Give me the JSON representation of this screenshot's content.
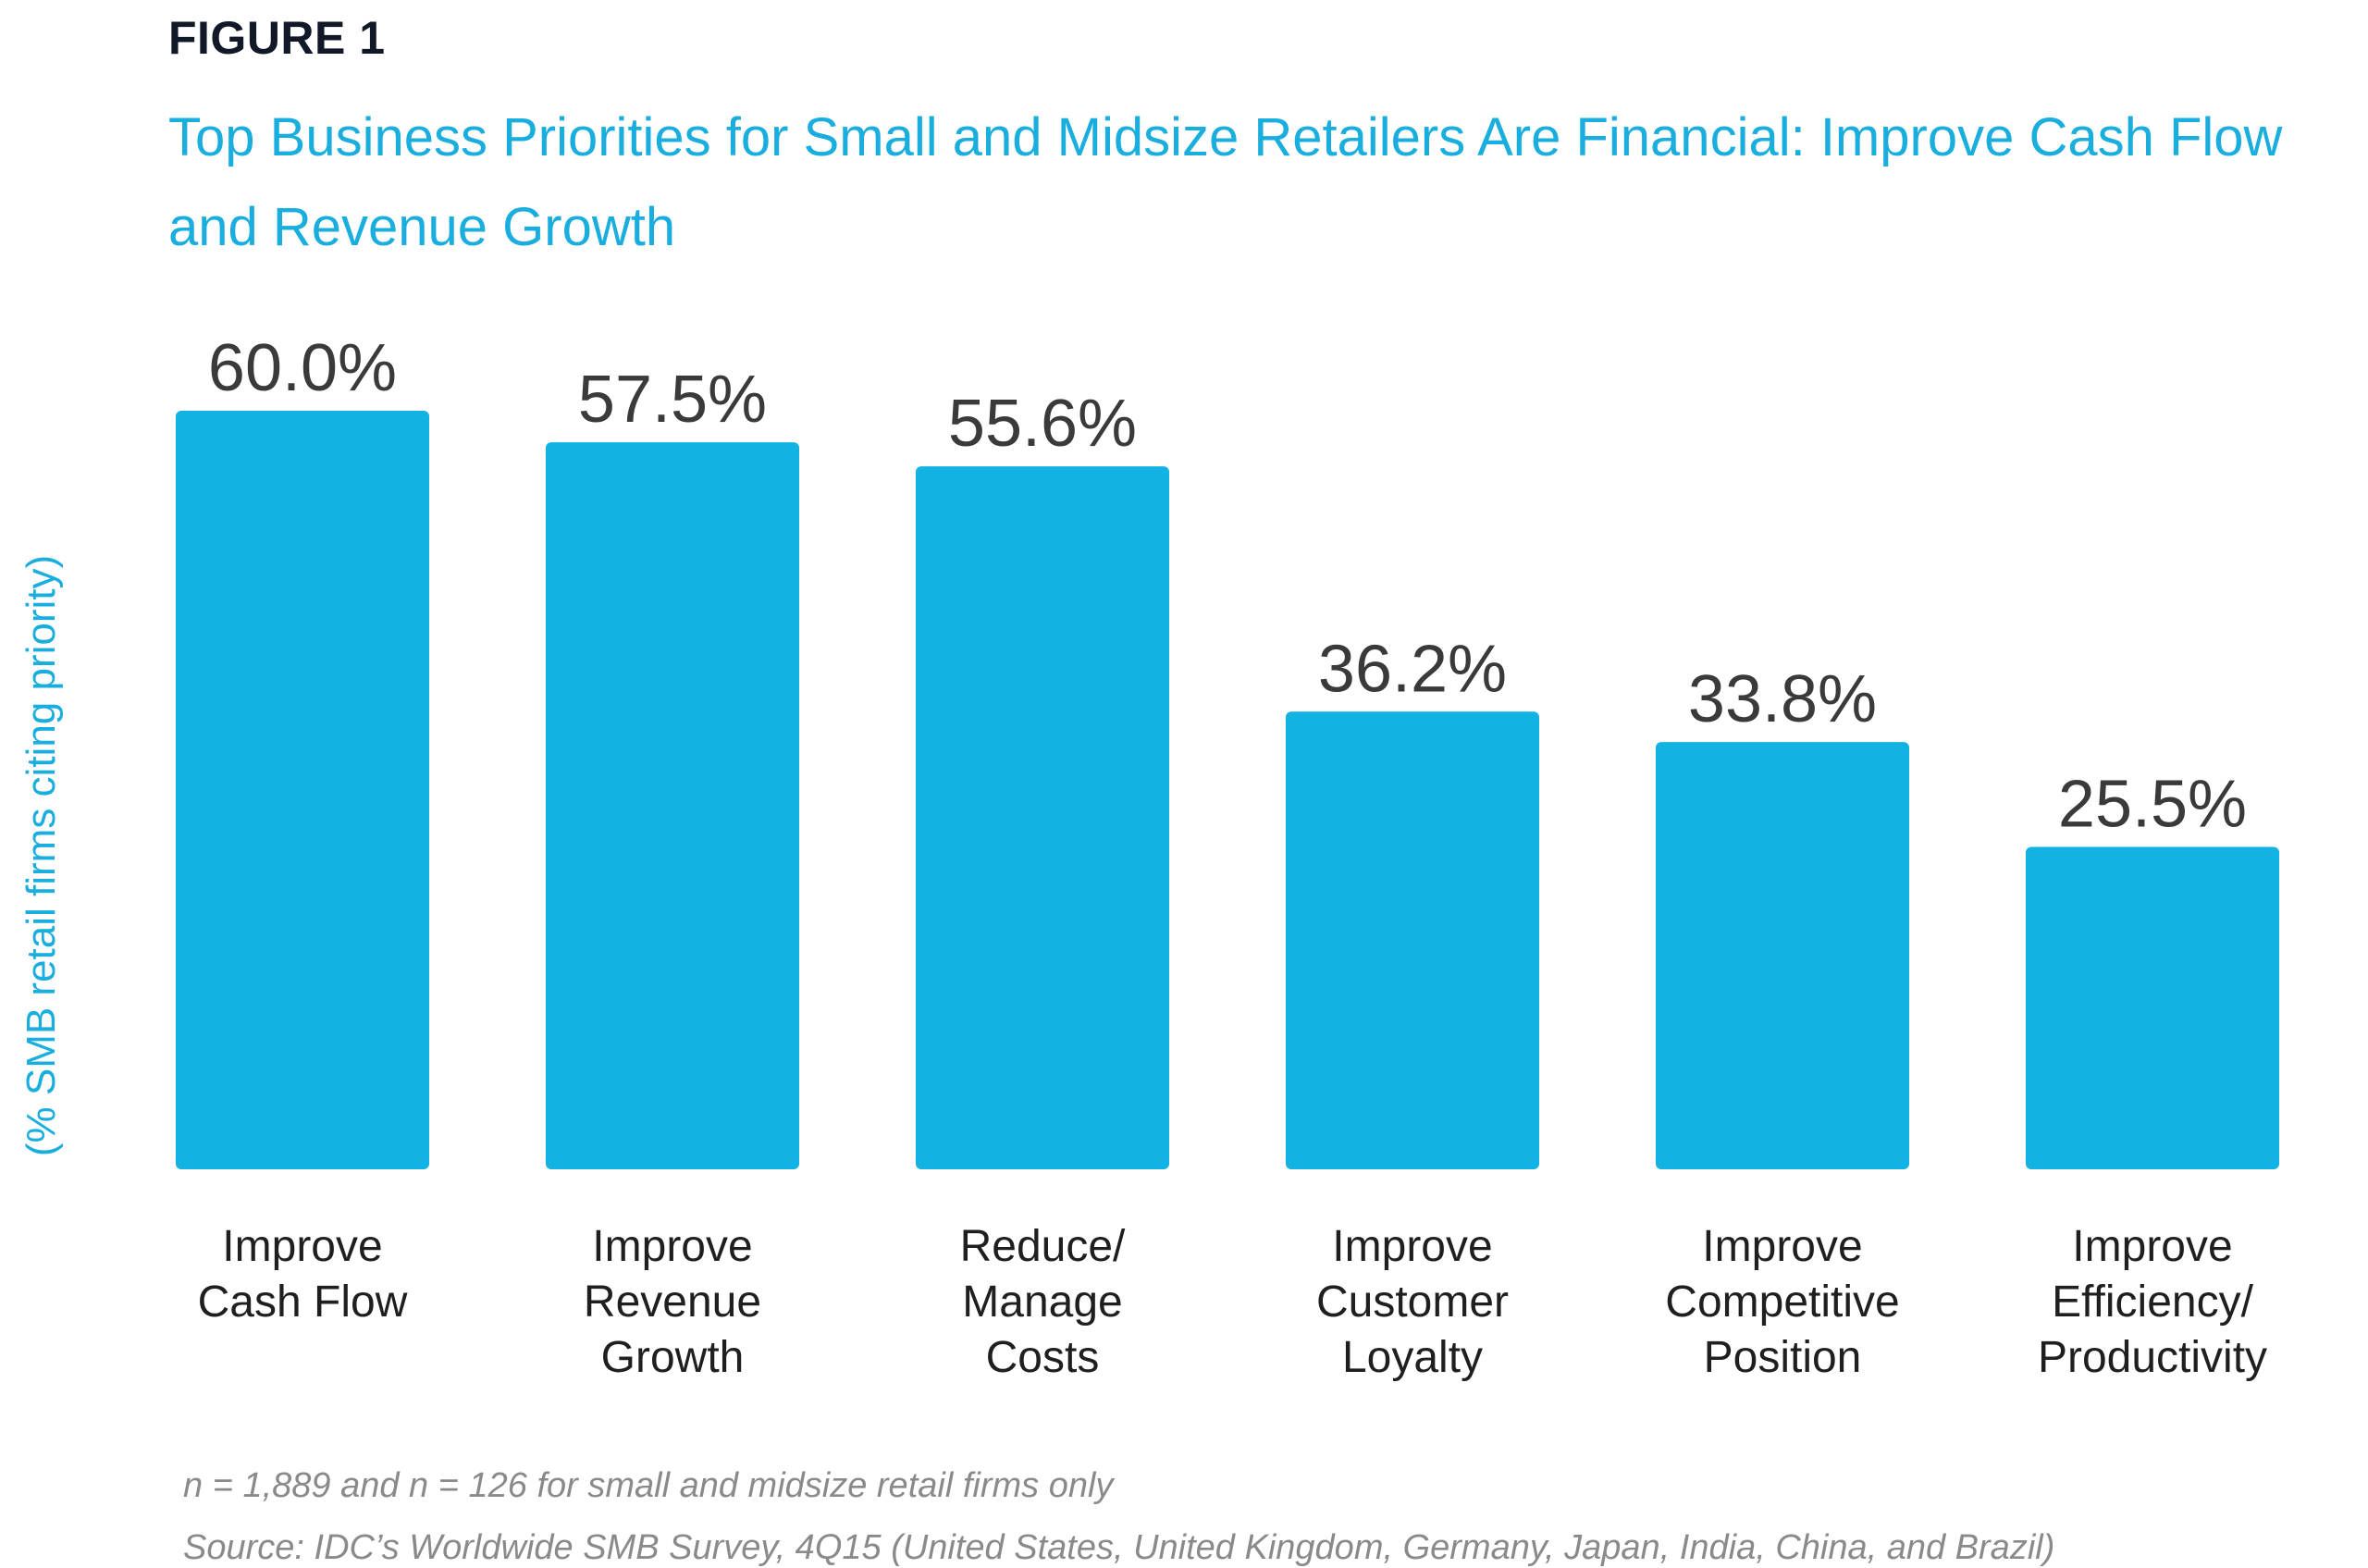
{
  "figure_label": "FIGURE 1",
  "chart_data": {
    "type": "bar",
    "title": "Top Business Priorities for Small and Midsize Retailers Are Financial: Improve Cash Flow and Revenue Growth",
    "ylabel": "(% SMB retail firms citing priority)",
    "xlabel": "",
    "categories": [
      "Improve\nCash Flow",
      "Improve\nRevenue\nGrowth",
      "Reduce/\nManage\nCosts",
      "Improve\nCustomer\nLoyalty",
      "Improve\nCompetitive\nPosition",
      "Improve\nEfficiency/\nProductivity"
    ],
    "values": [
      60.0,
      57.5,
      55.6,
      36.2,
      33.8,
      25.5
    ],
    "value_labels": [
      "60.0%",
      "57.5%",
      "55.6%",
      "36.2%",
      "33.8%",
      "25.5%"
    ],
    "ylim": [
      0,
      60
    ],
    "grid": false,
    "legend": "none",
    "bar_color": "#12b2e2",
    "title_color": "#1aaede"
  },
  "footnotes": {
    "sample": "n = 1,889 and n = 126 for small and midsize retail firms only",
    "source": "Source: IDC’s Worldwide SMB Survey, 4Q15 (United States, United Kingdom, Germany, Japan, India, China, and Brazil)"
  }
}
